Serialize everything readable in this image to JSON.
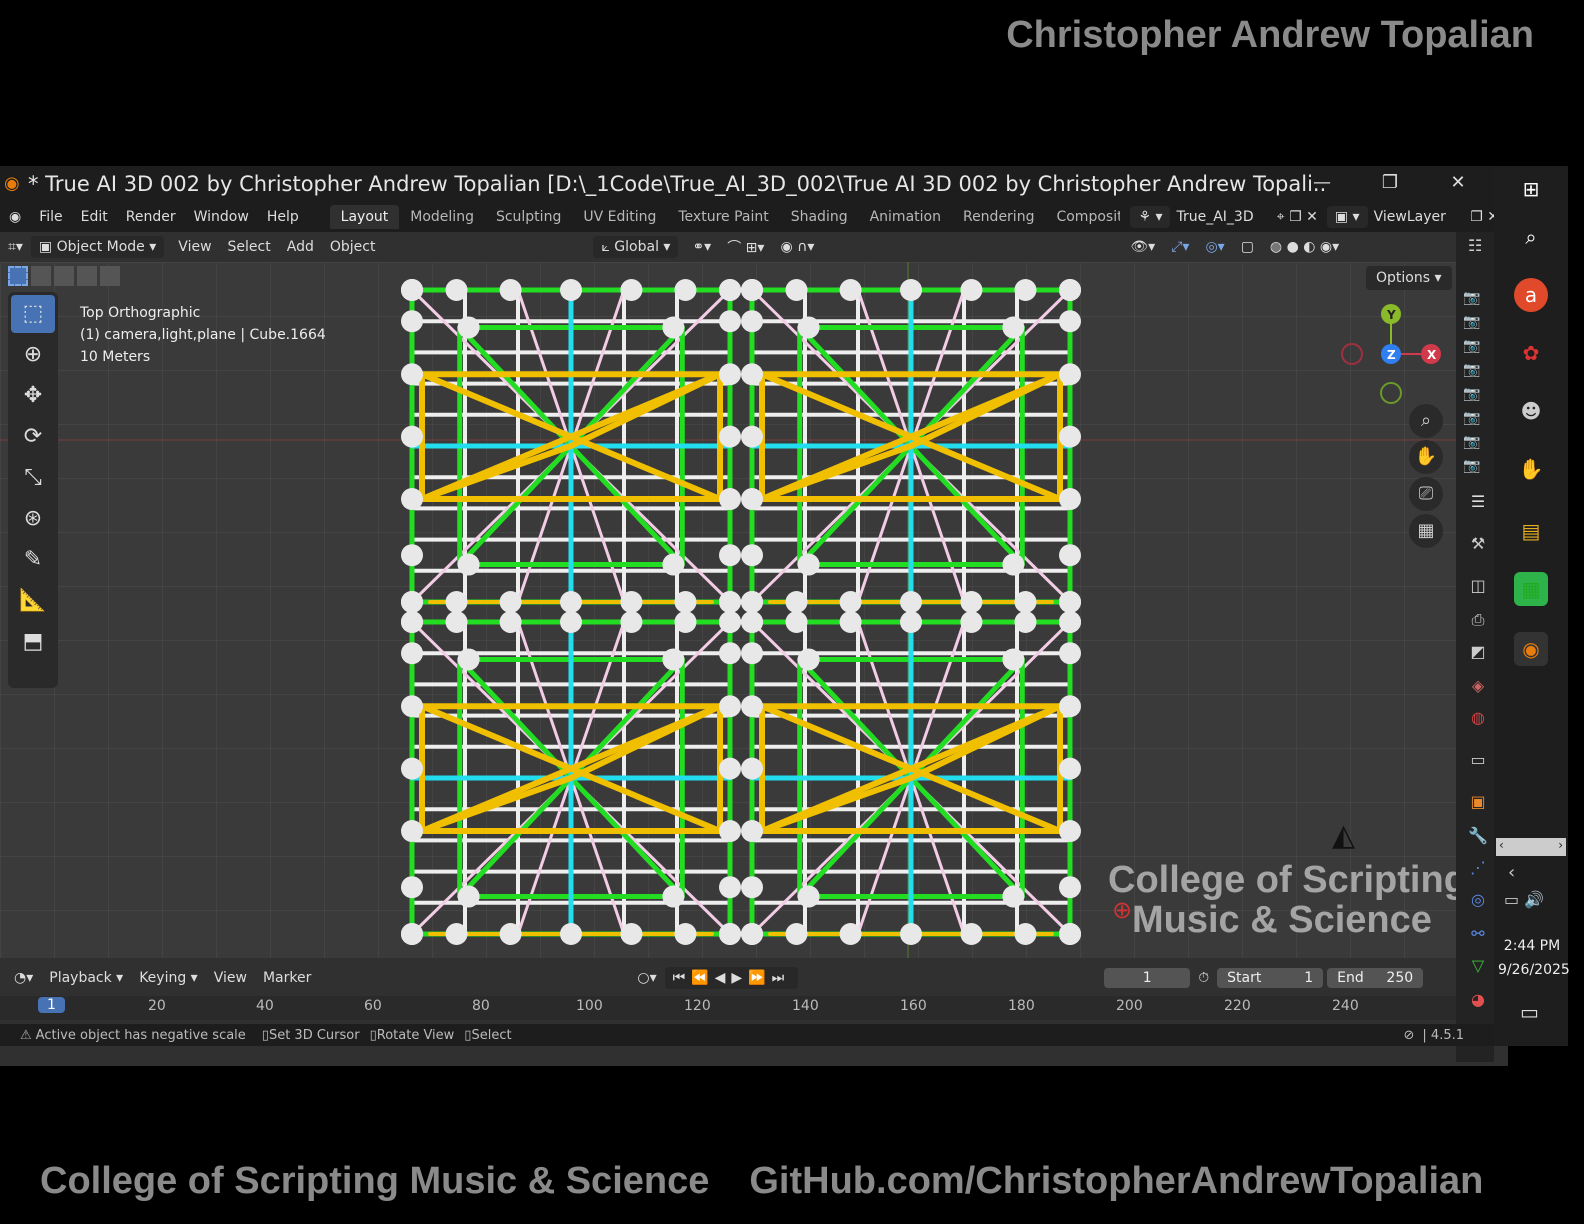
{
  "banner": {
    "top": "Christopher Andrew Topalian",
    "bottom_left": "College of Scripting Music & Science",
    "bottom_right": "GitHub.com/ChristopherAndrewTopalian"
  },
  "window": {
    "title": "* True AI 3D 002 by Christopher Andrew Topalian [D:\\_1Code\\True_AI_3D_002\\True AI 3D 002 by Christopher Andrew Topali...",
    "minimize": "—",
    "restore": "❐",
    "close": "✕"
  },
  "menu": {
    "items": [
      "File",
      "Edit",
      "Render",
      "Window",
      "Help"
    ],
    "workspaces": [
      "Layout",
      "Modeling",
      "Sculpting",
      "UV Editing",
      "Texture Paint",
      "Shading",
      "Animation",
      "Rendering",
      "Compositin"
    ],
    "active_workspace": "Layout",
    "scene": "True_AI_3D",
    "view_layer": "ViewLayer"
  },
  "viewport_header": {
    "mode": "Object Mode",
    "menus": [
      "View",
      "Select",
      "Add",
      "Object"
    ],
    "transform_orientation": "Global"
  },
  "viewport": {
    "view_name": "Top Orthographic",
    "collection": "(1) camera,light,plane | Cube.1664",
    "scale": "10 Meters",
    "options_label": "Options",
    "axis_y": "Y",
    "axis_z": "Z",
    "axis_x": "X",
    "watermark_line1": "College of Scripting",
    "watermark_line2": "Music & Science",
    "colors": {
      "green": "#22dd22",
      "yellow": "#f0c000",
      "cyan": "#22ddee",
      "pink": "#f3cce6",
      "white": "#eeeeee"
    }
  },
  "timeline": {
    "menus": [
      "Playback",
      "Keying",
      "View",
      "Marker"
    ],
    "current_frame": "1",
    "start_label": "Start",
    "start_value": "1",
    "end_label": "End",
    "end_value": "250",
    "ruler": [
      "1",
      "20",
      "40",
      "60",
      "80",
      "100",
      "120",
      "140",
      "160",
      "180",
      "200",
      "220",
      "240"
    ]
  },
  "statusbar": {
    "warning": "Active object has negative scale",
    "hint1": "Set 3D Cursor",
    "hint2": "Rotate View",
    "hint3": "Select",
    "version": "4.5.1"
  },
  "taskbar": {
    "time": "2:44 PM",
    "date": "9/26/2025"
  }
}
